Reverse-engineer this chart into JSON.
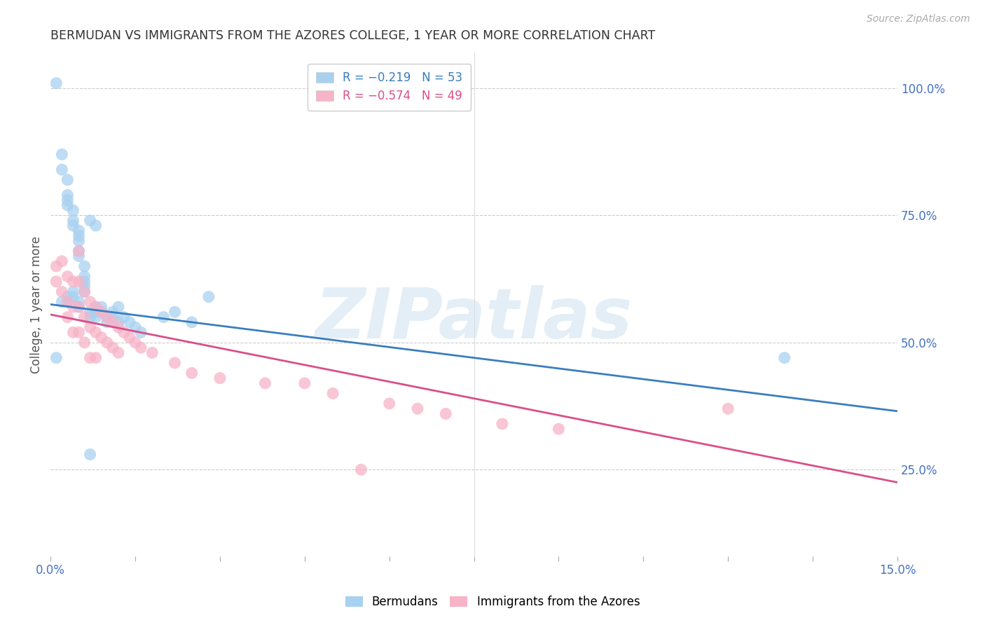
{
  "title": "BERMUDAN VS IMMIGRANTS FROM THE AZORES COLLEGE, 1 YEAR OR MORE CORRELATION CHART",
  "source": "Source: ZipAtlas.com",
  "ylabel": "College, 1 year or more",
  "right_ytick_vals": [
    1.0,
    0.75,
    0.5,
    0.25
  ],
  "xmin": 0.0,
  "xmax": 0.15,
  "ymin": 0.08,
  "ymax": 1.07,
  "legend_blue_label": "R = −0.219   N = 53",
  "legend_pink_label": "R = −0.574   N = 49",
  "blue_color": "#a8d1f0",
  "pink_color": "#f7b3c8",
  "blue_line_color": "#3a7ebf",
  "pink_line_color": "#d94f8a",
  "watermark": "ZIPatlas",
  "blue_x": [
    0.001,
    0.002,
    0.002,
    0.003,
    0.003,
    0.003,
    0.003,
    0.003,
    0.004,
    0.004,
    0.004,
    0.004,
    0.004,
    0.005,
    0.005,
    0.005,
    0.005,
    0.005,
    0.005,
    0.005,
    0.006,
    0.006,
    0.006,
    0.006,
    0.006,
    0.007,
    0.007,
    0.007,
    0.008,
    0.008,
    0.008,
    0.008,
    0.009,
    0.009,
    0.01,
    0.01,
    0.011,
    0.011,
    0.012,
    0.012,
    0.013,
    0.014,
    0.015,
    0.016,
    0.02,
    0.022,
    0.025,
    0.028,
    0.001,
    0.002,
    0.003,
    0.13,
    0.007
  ],
  "blue_y": [
    1.01,
    0.87,
    0.84,
    0.82,
    0.79,
    0.78,
    0.77,
    0.59,
    0.76,
    0.74,
    0.73,
    0.6,
    0.59,
    0.72,
    0.71,
    0.7,
    0.68,
    0.67,
    0.58,
    0.57,
    0.65,
    0.63,
    0.62,
    0.61,
    0.6,
    0.74,
    0.56,
    0.55,
    0.73,
    0.57,
    0.56,
    0.55,
    0.57,
    0.56,
    0.55,
    0.54,
    0.55,
    0.56,
    0.57,
    0.54,
    0.55,
    0.54,
    0.53,
    0.52,
    0.55,
    0.56,
    0.54,
    0.59,
    0.47,
    0.58,
    0.58,
    0.47,
    0.28
  ],
  "pink_x": [
    0.001,
    0.001,
    0.002,
    0.002,
    0.003,
    0.003,
    0.003,
    0.004,
    0.004,
    0.004,
    0.005,
    0.005,
    0.005,
    0.005,
    0.006,
    0.006,
    0.006,
    0.007,
    0.007,
    0.007,
    0.008,
    0.008,
    0.008,
    0.009,
    0.009,
    0.01,
    0.01,
    0.011,
    0.011,
    0.012,
    0.012,
    0.013,
    0.014,
    0.015,
    0.016,
    0.018,
    0.022,
    0.025,
    0.03,
    0.038,
    0.045,
    0.05,
    0.06,
    0.065,
    0.07,
    0.08,
    0.09,
    0.12,
    0.055
  ],
  "pink_y": [
    0.65,
    0.62,
    0.66,
    0.6,
    0.63,
    0.58,
    0.55,
    0.62,
    0.57,
    0.52,
    0.68,
    0.62,
    0.57,
    0.52,
    0.6,
    0.55,
    0.5,
    0.58,
    0.53,
    0.47,
    0.57,
    0.52,
    0.47,
    0.56,
    0.51,
    0.55,
    0.5,
    0.54,
    0.49,
    0.53,
    0.48,
    0.52,
    0.51,
    0.5,
    0.49,
    0.48,
    0.46,
    0.44,
    0.43,
    0.42,
    0.42,
    0.4,
    0.38,
    0.37,
    0.36,
    0.34,
    0.33,
    0.37,
    0.25
  ]
}
